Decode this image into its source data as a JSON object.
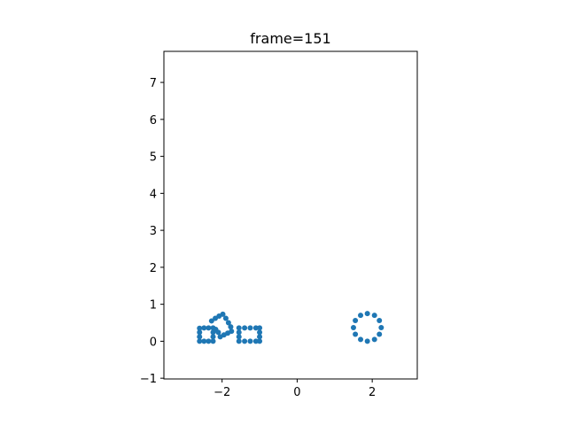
{
  "chart_data": {
    "type": "scatter",
    "title": "frame=151",
    "xlabel": "",
    "ylabel": "",
    "xlim": [
      -3.55,
      3.2
    ],
    "ylim": [
      -1.02,
      7.84
    ],
    "xticks": [
      -2,
      0,
      2
    ],
    "xtick_labels": [
      "−2",
      "0",
      "2"
    ],
    "yticks": [
      -1,
      0,
      1,
      2,
      3,
      4,
      5,
      6,
      7
    ],
    "ytick_labels": [
      "−1",
      "0",
      "1",
      "2",
      "3",
      "4",
      "5",
      "6",
      "7"
    ],
    "grid": false,
    "legend": "none",
    "marker_color": "#1f77b4",
    "points": [
      {
        "x": -2.6,
        "y": 0.0
      },
      {
        "x": -2.48,
        "y": 0.0
      },
      {
        "x": -2.36,
        "y": 0.0
      },
      {
        "x": -2.24,
        "y": 0.0
      },
      {
        "x": -2.6,
        "y": 0.12
      },
      {
        "x": -2.6,
        "y": 0.24
      },
      {
        "x": -2.6,
        "y": 0.35
      },
      {
        "x": -2.48,
        "y": 0.36
      },
      {
        "x": -2.36,
        "y": 0.36
      },
      {
        "x": -2.24,
        "y": 0.36
      },
      {
        "x": -2.24,
        "y": 0.12
      },
      {
        "x": -2.24,
        "y": 0.24
      },
      {
        "x": -2.05,
        "y": 0.12
      },
      {
        "x": -1.95,
        "y": 0.17
      },
      {
        "x": -1.85,
        "y": 0.22
      },
      {
        "x": -1.75,
        "y": 0.27
      },
      {
        "x": -2.28,
        "y": 0.55
      },
      {
        "x": -2.18,
        "y": 0.62
      },
      {
        "x": -2.08,
        "y": 0.68
      },
      {
        "x": -1.98,
        "y": 0.73
      },
      {
        "x": -1.9,
        "y": 0.62
      },
      {
        "x": -1.83,
        "y": 0.5
      },
      {
        "x": -1.77,
        "y": 0.39
      },
      {
        "x": -2.17,
        "y": 0.32
      },
      {
        "x": -2.1,
        "y": 0.24
      },
      {
        "x": -1.55,
        "y": 0.0
      },
      {
        "x": -1.4,
        "y": 0.0
      },
      {
        "x": -1.25,
        "y": 0.0
      },
      {
        "x": -1.1,
        "y": 0.0
      },
      {
        "x": -1.0,
        "y": 0.0
      },
      {
        "x": -1.55,
        "y": 0.12
      },
      {
        "x": -1.55,
        "y": 0.24
      },
      {
        "x": -1.55,
        "y": 0.36
      },
      {
        "x": -1.4,
        "y": 0.36
      },
      {
        "x": -1.25,
        "y": 0.36
      },
      {
        "x": -1.1,
        "y": 0.36
      },
      {
        "x": -1.0,
        "y": 0.36
      },
      {
        "x": -1.0,
        "y": 0.12
      },
      {
        "x": -1.0,
        "y": 0.24
      },
      {
        "x": 2.24,
        "y": 0.37
      },
      {
        "x": 2.19,
        "y": 0.56
      },
      {
        "x": 2.06,
        "y": 0.7
      },
      {
        "x": 1.87,
        "y": 0.75
      },
      {
        "x": 1.69,
        "y": 0.7
      },
      {
        "x": 1.55,
        "y": 0.56
      },
      {
        "x": 1.5,
        "y": 0.37
      },
      {
        "x": 1.55,
        "y": 0.19
      },
      {
        "x": 1.69,
        "y": 0.05
      },
      {
        "x": 1.87,
        "y": 0.0
      },
      {
        "x": 2.06,
        "y": 0.05
      },
      {
        "x": 2.19,
        "y": 0.19
      }
    ]
  }
}
